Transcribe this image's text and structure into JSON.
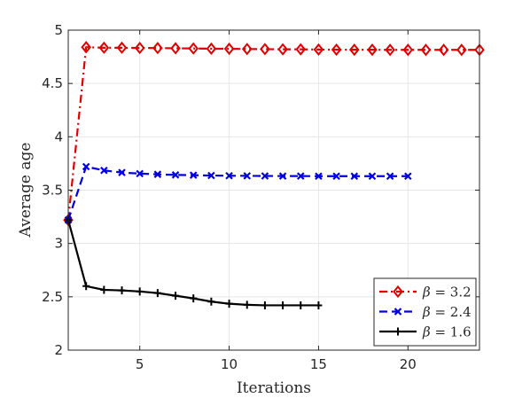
{
  "chart_data": {
    "type": "line",
    "title": "",
    "xlabel": "Iterations",
    "ylabel": "Average age",
    "xlim": [
      1,
      24
    ],
    "ylim": [
      2,
      5
    ],
    "xticks": [
      5,
      10,
      15,
      20
    ],
    "yticks": [
      2,
      2.5,
      3,
      3.5,
      4,
      4.5,
      5
    ],
    "grid": true,
    "legend_position": "bottom-right",
    "series": [
      {
        "name": "β = 3.2",
        "label_symbol": "β",
        "label_value": "= 3.2",
        "color": "#e00000",
        "line_style": "dash-dot",
        "marker": "diamond",
        "x": [
          1,
          2,
          3,
          4,
          5,
          6,
          7,
          8,
          9,
          10,
          11,
          12,
          13,
          14,
          15,
          16,
          17,
          18,
          19,
          20,
          21,
          22,
          23,
          24
        ],
        "y": [
          3.22,
          4.84,
          4.835,
          4.835,
          4.833,
          4.832,
          4.83,
          4.828,
          4.826,
          4.825,
          4.823,
          4.822,
          4.82,
          4.82,
          4.818,
          4.817,
          4.816,
          4.816,
          4.815,
          4.815,
          4.815,
          4.815,
          4.815,
          4.815
        ]
      },
      {
        "name": "β = 2.4",
        "label_symbol": "β",
        "label_value": "= 2.4",
        "color": "#0000e0",
        "line_style": "dashed",
        "marker": "x",
        "x": [
          1,
          2,
          3,
          4,
          5,
          6,
          7,
          8,
          9,
          10,
          11,
          12,
          13,
          14,
          15,
          16,
          17,
          18,
          19,
          20
        ],
        "y": [
          3.22,
          3.72,
          3.685,
          3.665,
          3.655,
          3.648,
          3.643,
          3.64,
          3.637,
          3.635,
          3.634,
          3.633,
          3.632,
          3.632,
          3.631,
          3.631,
          3.631,
          3.631,
          3.631,
          3.631
        ]
      },
      {
        "name": "β = 1.6",
        "label_symbol": "β",
        "label_value": "= 1.6",
        "color": "#000000",
        "line_style": "solid",
        "marker": "plus",
        "x": [
          1,
          2,
          3,
          4,
          5,
          6,
          7,
          8,
          9,
          10,
          11,
          12,
          13,
          14,
          15
        ],
        "y": [
          3.22,
          2.6,
          2.565,
          2.56,
          2.55,
          2.535,
          2.51,
          2.485,
          2.455,
          2.435,
          2.425,
          2.42,
          2.42,
          2.42,
          2.42
        ]
      }
    ]
  }
}
